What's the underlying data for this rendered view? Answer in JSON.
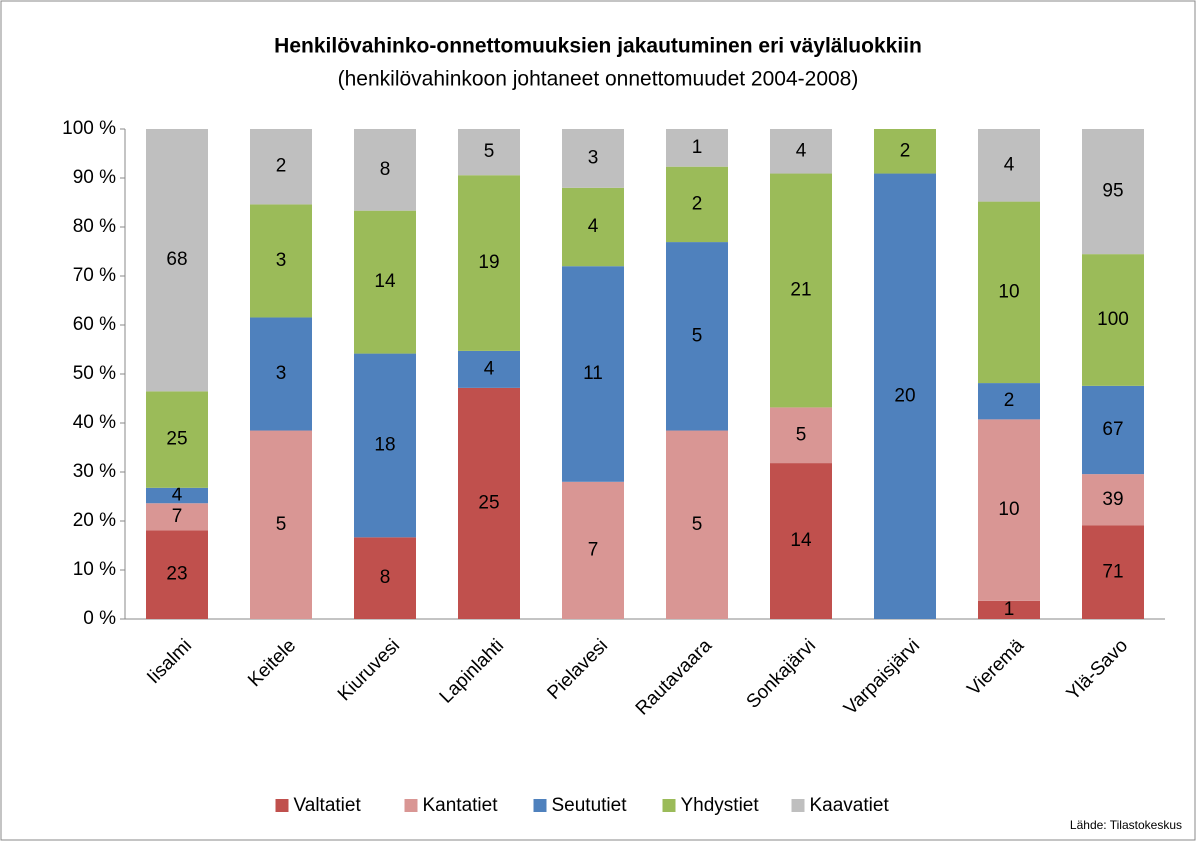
{
  "chart_data": {
    "type": "bar",
    "stacking": "percent",
    "title": "Henkilövahinko-onnettomuuksien jakautuminen eri väyläluokkiin",
    "subtitle": "(henkilövahinkoon johtaneet onnettomuudet 2004-2008)",
    "source": "Lähde: Tilastokeskus",
    "categories": [
      "Iisalmi",
      "Keitele",
      "Kiuruvesi",
      "Lapinlahti",
      "Pielavesi",
      "Rautavaara",
      "Sonkajärvi",
      "Varpaisjärvi",
      "Vieremä",
      "Ylä-Savo"
    ],
    "series": [
      {
        "name": "Valtatiet",
        "color": "#c0504d",
        "values": [
          23,
          null,
          8,
          25,
          null,
          null,
          14,
          null,
          1,
          71
        ]
      },
      {
        "name": "Kantatiet",
        "color": "#d99694",
        "values": [
          7,
          5,
          null,
          null,
          7,
          5,
          5,
          null,
          10,
          39
        ]
      },
      {
        "name": "Seututiet",
        "color": "#4f81bd",
        "values": [
          4,
          3,
          18,
          4,
          11,
          5,
          null,
          20,
          2,
          67
        ]
      },
      {
        "name": "Yhdystiet",
        "color": "#9bbb59",
        "values": [
          25,
          3,
          14,
          19,
          4,
          2,
          21,
          2,
          10,
          100
        ]
      },
      {
        "name": "Kaavatiet",
        "color": "#bfbfbf",
        "values": [
          68,
          2,
          8,
          5,
          3,
          1,
          4,
          null,
          4,
          95
        ]
      }
    ],
    "ylim": [
      0,
      100
    ],
    "yticks": [
      {
        "value": 0,
        "label": "0 %"
      },
      {
        "value": 10,
        "label": "10 %"
      },
      {
        "value": 20,
        "label": "20 %"
      },
      {
        "value": 30,
        "label": "30 %"
      },
      {
        "value": 40,
        "label": "40 %"
      },
      {
        "value": 50,
        "label": "50 %"
      },
      {
        "value": 60,
        "label": "60 %"
      },
      {
        "value": 70,
        "label": "70 %"
      },
      {
        "value": 80,
        "label": "80 %"
      },
      {
        "value": 90,
        "label": "90 %"
      },
      {
        "value": 100,
        "label": "100 %"
      }
    ],
    "grid": false,
    "legend": "bottom"
  }
}
